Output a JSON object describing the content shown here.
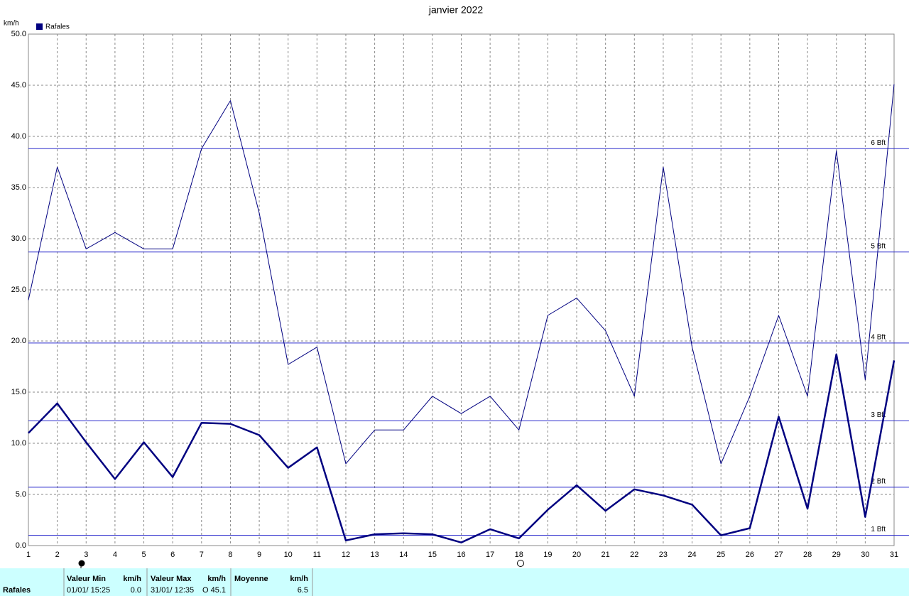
{
  "chart_data": {
    "type": "line",
    "title": "janvier 2022",
    "y_unit": "km/h",
    "x": [
      1,
      2,
      3,
      4,
      5,
      6,
      7,
      8,
      9,
      10,
      11,
      12,
      13,
      14,
      15,
      16,
      17,
      18,
      19,
      20,
      21,
      22,
      23,
      24,
      25,
      26,
      27,
      28,
      29,
      30,
      31
    ],
    "xlim": [
      1,
      31
    ],
    "xticks": [
      1,
      2,
      3,
      4,
      5,
      6,
      7,
      8,
      9,
      10,
      11,
      12,
      13,
      14,
      15,
      16,
      17,
      18,
      19,
      20,
      21,
      22,
      23,
      24,
      25,
      26,
      27,
      28,
      29,
      30,
      31
    ],
    "ylim": [
      0,
      50
    ],
    "yticks": [
      {
        "value": 0,
        "label": "0.0"
      },
      {
        "value": 5,
        "label": "5.0"
      },
      {
        "value": 10,
        "label": "10.0"
      },
      {
        "value": 15,
        "label": "15.0"
      },
      {
        "value": 20,
        "label": "20.0"
      },
      {
        "value": 25,
        "label": "25.0"
      },
      {
        "value": 30,
        "label": "30.0"
      },
      {
        "value": 35,
        "label": "35.0"
      },
      {
        "value": 40,
        "label": "40.0"
      },
      {
        "value": 45,
        "label": "45.0"
      },
      {
        "value": 50,
        "label": "50.0"
      }
    ],
    "grid": true,
    "series": [
      {
        "name": "Rafales",
        "color": "#000080",
        "width": 1,
        "values": [
          24.0,
          37.0,
          29.0,
          30.6,
          29.0,
          29.0,
          38.8,
          43.5,
          32.5,
          17.7,
          19.4,
          8.0,
          11.3,
          11.3,
          14.6,
          12.9,
          14.6,
          11.3,
          22.5,
          24.2,
          21.0,
          14.6,
          37.0,
          19.4,
          8.0,
          14.6,
          22.5,
          14.6,
          38.6,
          16.2,
          45.1
        ]
      },
      {
        "color": "#000080",
        "width": 2.5,
        "values": [
          11.0,
          13.9,
          10.1,
          6.5,
          10.1,
          6.7,
          12.0,
          11.9,
          10.8,
          7.6,
          9.6,
          0.5,
          1.1,
          1.2,
          1.1,
          0.3,
          1.6,
          0.7,
          3.5,
          5.9,
          3.4,
          5.5,
          4.9,
          4.0,
          1.0,
          1.7,
          12.6,
          3.6,
          18.7,
          2.8,
          18.1
        ]
      }
    ],
    "reference_lines": [
      {
        "value": 1.0,
        "label": "1 Bft"
      },
      {
        "value": 5.7,
        "label": "2 Bft"
      },
      {
        "value": 12.2,
        "label": "3 Bft"
      },
      {
        "value": 19.8,
        "label": "4 Bft"
      },
      {
        "value": 28.7,
        "label": "5 Bft"
      },
      {
        "value": 38.8,
        "label": "6 Bft"
      }
    ],
    "reference_color": "#2a2acc"
  },
  "table": {
    "headers": [
      "Valeur Min",
      "km/h",
      "Valeur Max",
      "km/h",
      "Moyenne",
      "km/h"
    ],
    "rows": [
      {
        "label": "Rafales",
        "cells": [
          "01/01/ 15:25",
          "0.0",
          "31/01/ 12:35",
          "O 45.1",
          "6.5"
        ]
      }
    ]
  }
}
